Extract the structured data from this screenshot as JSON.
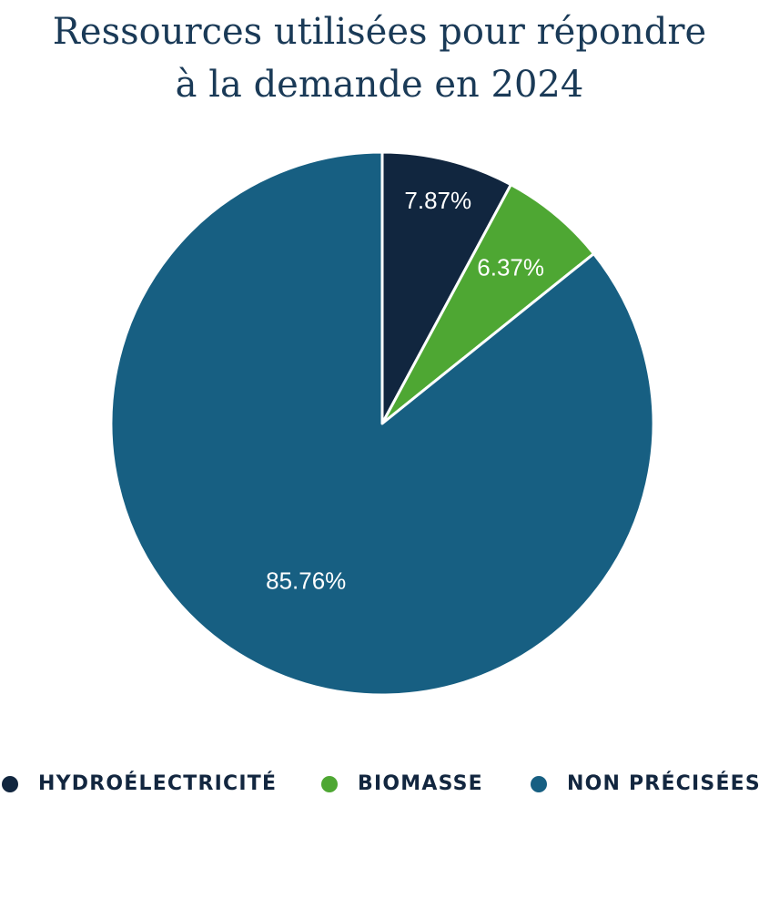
{
  "chart_data": {
    "type": "pie",
    "title_lines": [
      "Ressources utilisées pour répondre",
      "à la demande en 2024"
    ],
    "slices": [
      {
        "name": "HYDROÉLECTRICITÉ",
        "value": 7.87,
        "label": "7.87%",
        "color": "#11263f"
      },
      {
        "name": "BIOMASSE",
        "value": 6.37,
        "label": "6.37%",
        "color": "#4ea733"
      },
      {
        "name": "NON PRÉCISÉES",
        "value": 85.76,
        "label": "85.76%",
        "color": "#175f82"
      }
    ],
    "start_angle": "top",
    "direction": "clockwise",
    "legend_position": "bottom"
  }
}
